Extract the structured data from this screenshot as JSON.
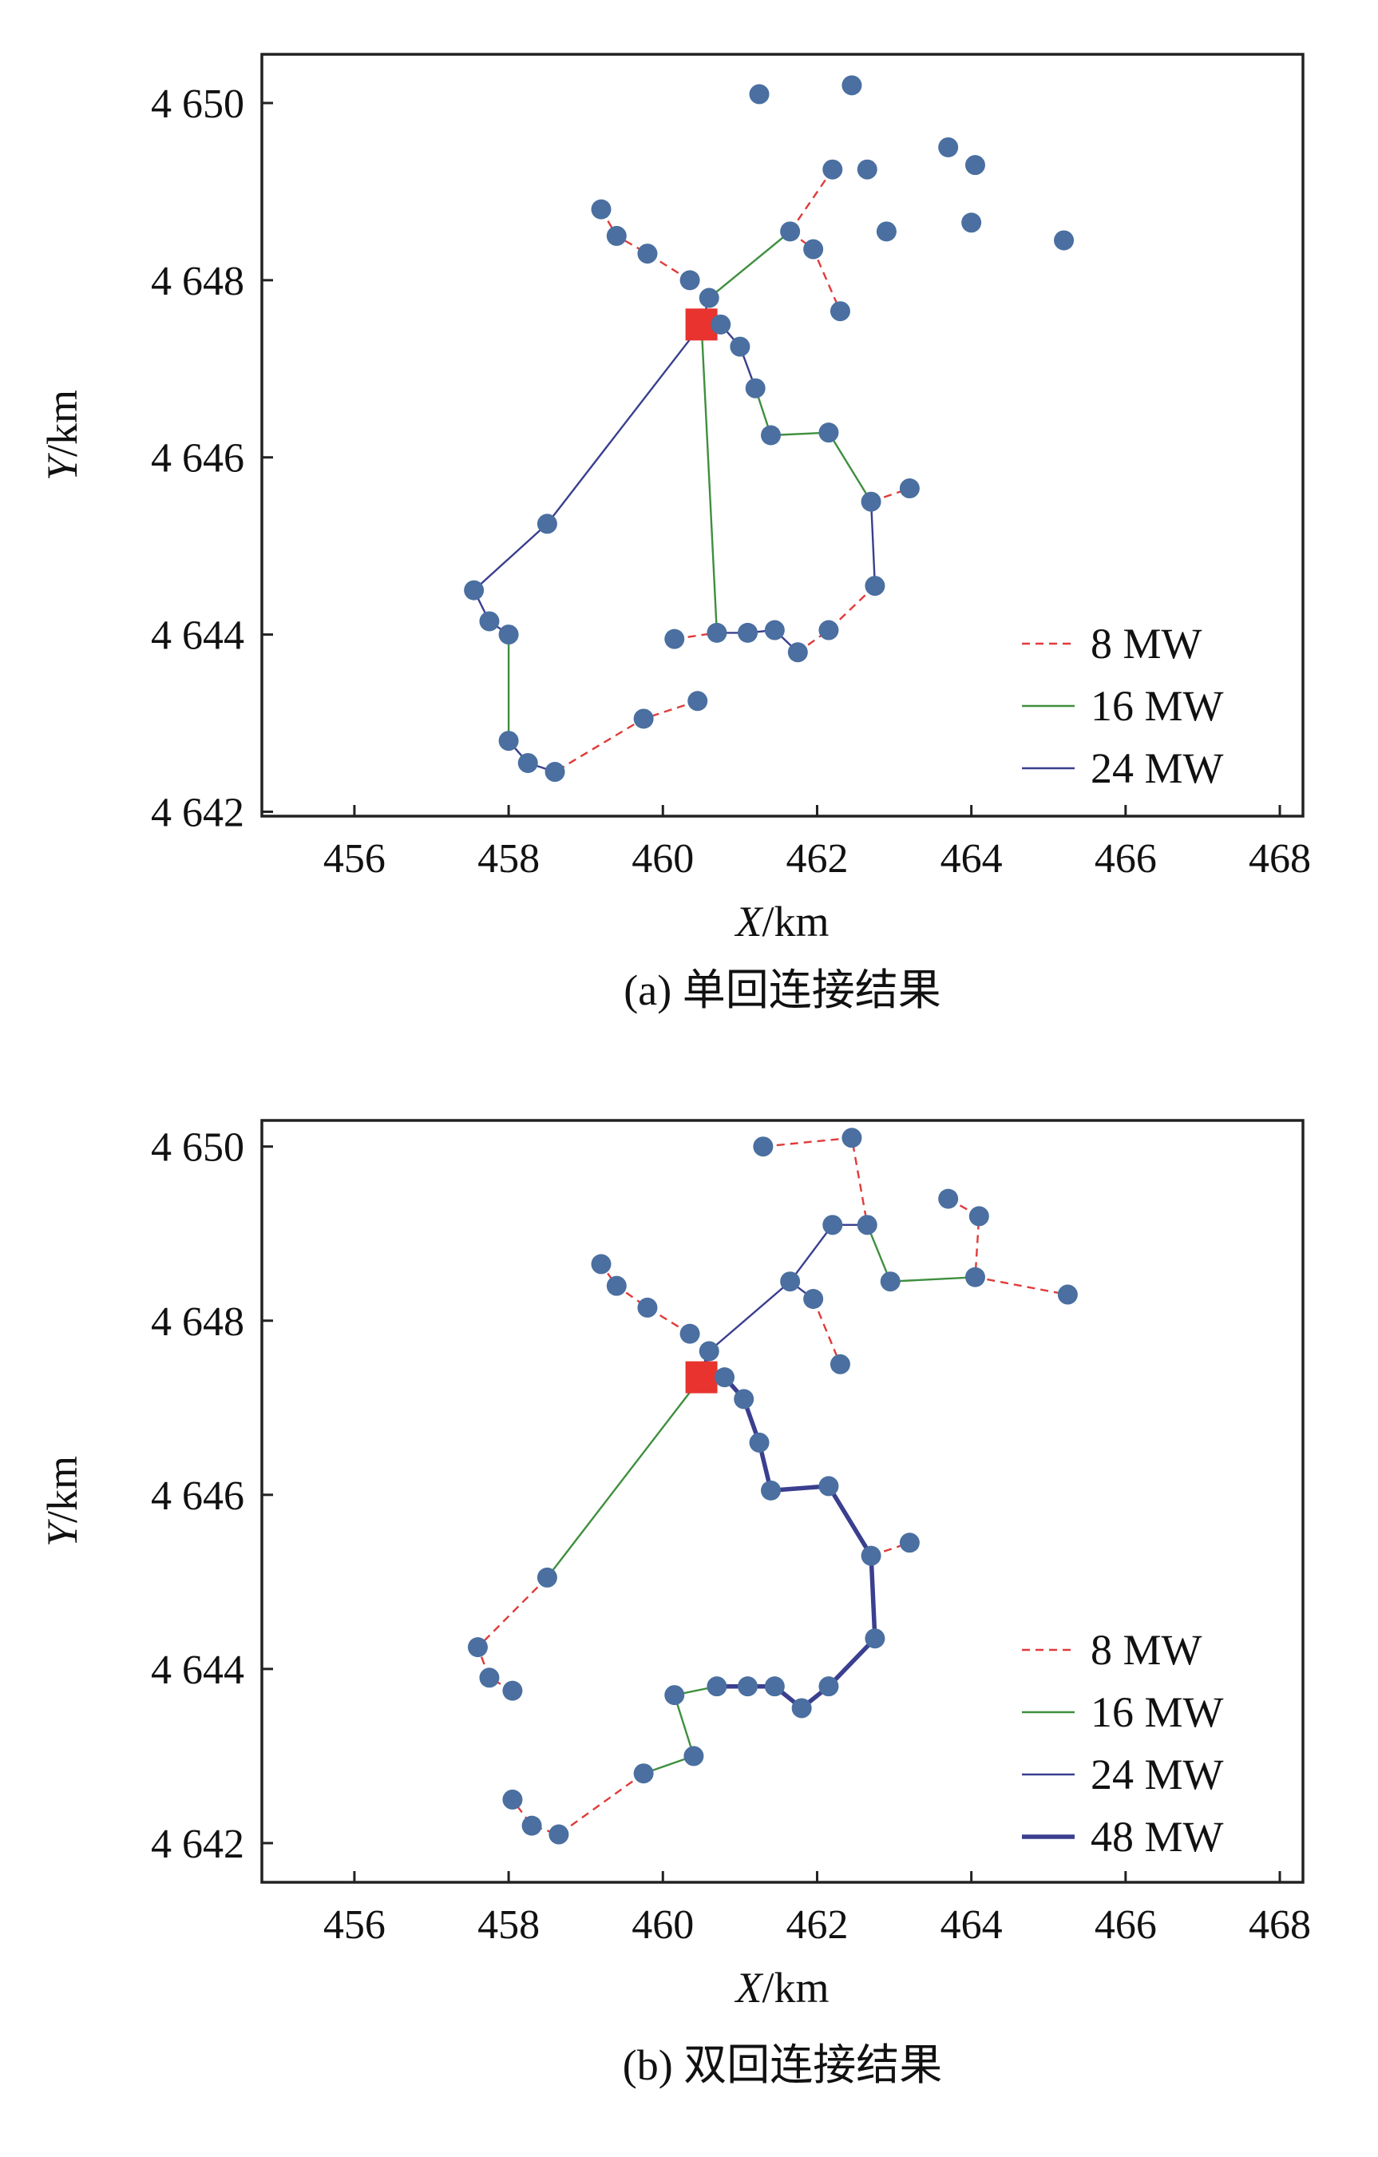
{
  "chart_data": [
    {
      "type": "scatter",
      "caption": "(a) 单回连接结果",
      "xlabel": "X/km",
      "ylabel": "Y/km",
      "xlim": [
        454.8,
        468.3
      ],
      "ylim": [
        4641.95,
        4650.55
      ],
      "xticks": [
        456,
        458,
        460,
        462,
        464,
        466,
        468
      ],
      "xtick_labels": [
        "456",
        "458",
        "460",
        "462",
        "464",
        "466",
        "468"
      ],
      "yticks": [
        4642,
        4644,
        4646,
        4648,
        4650
      ],
      "ytick_labels": [
        "4 642",
        "4 644",
        "4 646",
        "4 648",
        "4 650"
      ],
      "legend_position": "bottom-right",
      "series": [
        {
          "name": "8 MW",
          "style": "dashed",
          "color": "#e03a3a",
          "width": 2.4,
          "lines": [
            [
              [
                461.65,
                4648.55
              ],
              [
                462.2,
                4649.25
              ]
            ],
            [
              [
                461.65,
                4648.55
              ],
              [
                461.95,
                4648.35
              ],
              [
                462.3,
                4647.65
              ]
            ],
            [
              [
                460.35,
                4648.0
              ],
              [
                459.8,
                4648.3
              ],
              [
                459.4,
                4648.5
              ],
              [
                459.2,
                4648.8
              ]
            ],
            [
              [
                462.7,
                4645.5
              ],
              [
                463.2,
                4645.65
              ]
            ],
            [
              [
                462.75,
                4644.55
              ],
              [
                462.15,
                4644.05
              ],
              [
                461.75,
                4643.8
              ]
            ],
            [
              [
                460.15,
                4643.95
              ],
              [
                460.7,
                4644.02
              ]
            ],
            [
              [
                460.45,
                4643.25
              ],
              [
                459.75,
                4643.05
              ],
              [
                458.6,
                4642.45
              ]
            ]
          ]
        },
        {
          "name": "16 MW",
          "style": "solid",
          "color": "#3e8f3e",
          "width": 2.4,
          "lines": [
            [
              [
                460.6,
                4647.8
              ],
              [
                461.65,
                4648.55
              ]
            ],
            [
              [
                461.2,
                4646.78
              ],
              [
                461.4,
                4646.25
              ],
              [
                462.15,
                4646.28
              ],
              [
                462.7,
                4645.5
              ]
            ],
            [
              [
                460.5,
                4647.5
              ],
              [
                460.7,
                4644.02
              ]
            ],
            [
              [
                458.0,
                4644.0
              ],
              [
                458.0,
                4642.8
              ]
            ]
          ]
        },
        {
          "name": "24 MW",
          "style": "solid",
          "color": "#3a3f8f",
          "width": 2.4,
          "lines": [
            [
              [
                460.5,
                4647.5
              ],
              [
                458.5,
                4645.25
              ],
              [
                457.55,
                4644.5
              ],
              [
                457.75,
                4644.15
              ],
              [
                458.0,
                4644.0
              ]
            ],
            [
              [
                460.5,
                4647.5
              ],
              [
                460.75,
                4647.5
              ],
              [
                461.0,
                4647.25
              ],
              [
                461.2,
                4646.78
              ]
            ],
            [
              [
                460.5,
                4647.5
              ],
              [
                460.6,
                4647.8
              ]
            ],
            [
              [
                458.0,
                4642.8
              ],
              [
                458.25,
                4642.55
              ],
              [
                458.6,
                4642.45
              ]
            ],
            [
              [
                462.7,
                4645.5
              ],
              [
                462.75,
                4644.55
              ]
            ],
            [
              [
                460.7,
                4644.02
              ],
              [
                461.1,
                4644.02
              ],
              [
                461.45,
                4644.05
              ],
              [
                461.75,
                4643.8
              ]
            ]
          ]
        }
      ],
      "nodes": [
        [
          461.25,
          4650.1
        ],
        [
          462.45,
          4650.2
        ],
        [
          463.7,
          4649.5
        ],
        [
          464.05,
          4649.3
        ],
        [
          462.2,
          4649.25
        ],
        [
          462.65,
          4649.25
        ],
        [
          459.2,
          4648.8
        ],
        [
          461.65,
          4648.55
        ],
        [
          462.9,
          4648.55
        ],
        [
          464.0,
          4648.65
        ],
        [
          465.2,
          4648.45
        ],
        [
          459.4,
          4648.5
        ],
        [
          459.8,
          4648.3
        ],
        [
          461.95,
          4648.35
        ],
        [
          460.35,
          4648.0
        ],
        [
          460.6,
          4647.8
        ],
        [
          462.3,
          4647.65
        ],
        [
          460.75,
          4647.5
        ],
        [
          461.0,
          4647.25
        ],
        [
          461.2,
          4646.78
        ],
        [
          461.4,
          4646.25
        ],
        [
          462.15,
          4646.28
        ],
        [
          462.7,
          4645.5
        ],
        [
          463.2,
          4645.65
        ],
        [
          458.5,
          4645.25
        ],
        [
          462.75,
          4644.55
        ],
        [
          457.55,
          4644.5
        ],
        [
          457.75,
          4644.15
        ],
        [
          458.0,
          4644.0
        ],
        [
          460.15,
          4643.95
        ],
        [
          460.7,
          4644.02
        ],
        [
          461.1,
          4644.02
        ],
        [
          461.45,
          4644.05
        ],
        [
          461.75,
          4643.8
        ],
        [
          462.15,
          4644.05
        ],
        [
          460.45,
          4643.25
        ],
        [
          459.75,
          4643.05
        ],
        [
          458.0,
          4642.8
        ],
        [
          458.25,
          4642.55
        ],
        [
          458.6,
          4642.45
        ]
      ],
      "substation": [
        460.5,
        4647.5
      ]
    },
    {
      "type": "scatter",
      "caption": "(b)  双回连接结果",
      "xlabel": "X/km",
      "ylabel": "Y/km",
      "xlim": [
        454.8,
        468.3
      ],
      "ylim": [
        4641.55,
        4650.3
      ],
      "xticks": [
        456,
        458,
        460,
        462,
        464,
        466,
        468
      ],
      "xtick_labels": [
        "456",
        "458",
        "460",
        "462",
        "464",
        "466",
        "468"
      ],
      "yticks": [
        4642,
        4644,
        4646,
        4648,
        4650
      ],
      "ytick_labels": [
        "4 642",
        "4 644",
        "4 646",
        "4 648",
        "4 650"
      ],
      "legend_position": "bottom-right",
      "series": [
        {
          "name": "8 MW",
          "style": "dashed",
          "color": "#e03a3a",
          "width": 2.4,
          "lines": [
            [
              [
                461.3,
                4650.0
              ],
              [
                462.45,
                4650.1
              ],
              [
                462.65,
                4649.1
              ]
            ],
            [
              [
                463.7,
                4649.4
              ],
              [
                464.1,
                4649.2
              ],
              [
                464.05,
                4648.5
              ],
              [
                465.25,
                4648.3
              ]
            ],
            [
              [
                460.35,
                4647.85
              ],
              [
                459.8,
                4648.15
              ],
              [
                459.4,
                4648.4
              ],
              [
                459.2,
                4648.65
              ]
            ],
            [
              [
                461.95,
                4648.25
              ],
              [
                462.3,
                4647.5
              ]
            ],
            [
              [
                462.7,
                4645.3
              ],
              [
                463.2,
                4645.45
              ]
            ],
            [
              [
                458.5,
                4645.05
              ],
              [
                457.6,
                4644.25
              ],
              [
                457.75,
                4643.9
              ],
              [
                458.05,
                4643.75
              ]
            ],
            [
              [
                459.75,
                4642.8
              ],
              [
                458.65,
                4642.1
              ],
              [
                458.3,
                4642.2
              ],
              [
                458.05,
                4642.5
              ]
            ]
          ]
        },
        {
          "name": "16 MW",
          "style": "solid",
          "color": "#3e8f3e",
          "width": 2.4,
          "lines": [
            [
              [
                462.65,
                4649.1
              ],
              [
                462.95,
                4648.45
              ],
              [
                464.05,
                4648.5
              ]
            ],
            [
              [
                460.5,
                4647.35
              ],
              [
                458.5,
                4645.05
              ]
            ],
            [
              [
                460.7,
                4643.8
              ],
              [
                460.15,
                4643.7
              ],
              [
                460.4,
                4643.0
              ],
              [
                459.75,
                4642.8
              ]
            ]
          ]
        },
        {
          "name": "24 MW",
          "style": "solid",
          "color": "#3a3f8f",
          "width": 2.4,
          "lines": [
            [
              [
                460.6,
                4647.65
              ],
              [
                461.65,
                4648.45
              ],
              [
                462.2,
                4649.1
              ],
              [
                462.65,
                4649.1
              ]
            ],
            [
              [
                461.65,
                4648.45
              ],
              [
                461.95,
                4648.25
              ]
            ]
          ]
        },
        {
          "name": "48 MW",
          "style": "solid",
          "color": "#3a3f8f",
          "width": 5.5,
          "lines": [
            [
              [
                460.5,
                4647.35
              ],
              [
                460.6,
                4647.65
              ]
            ],
            [
              [
                460.5,
                4647.35
              ],
              [
                460.8,
                4647.35
              ],
              [
                461.05,
                4647.1
              ],
              [
                461.25,
                4646.6
              ],
              [
                461.4,
                4646.05
              ],
              [
                462.15,
                4646.1
              ],
              [
                462.7,
                4645.3
              ],
              [
                462.75,
                4644.35
              ],
              [
                462.15,
                4643.8
              ],
              [
                461.8,
                4643.55
              ],
              [
                461.45,
                4643.8
              ],
              [
                461.1,
                4643.8
              ],
              [
                460.7,
                4643.8
              ]
            ]
          ]
        }
      ],
      "nodes": [
        [
          461.3,
          4650.0
        ],
        [
          462.45,
          4650.1
        ],
        [
          463.7,
          4649.4
        ],
        [
          464.1,
          4649.2
        ],
        [
          462.2,
          4649.1
        ],
        [
          462.65,
          4649.1
        ],
        [
          459.2,
          4648.65
        ],
        [
          461.65,
          4648.45
        ],
        [
          462.95,
          4648.45
        ],
        [
          464.05,
          4648.5
        ],
        [
          465.25,
          4648.3
        ],
        [
          459.4,
          4648.4
        ],
        [
          459.8,
          4648.15
        ],
        [
          461.95,
          4648.25
        ],
        [
          460.35,
          4647.85
        ],
        [
          460.6,
          4647.65
        ],
        [
          462.3,
          4647.5
        ],
        [
          460.8,
          4647.35
        ],
        [
          461.05,
          4647.1
        ],
        [
          461.25,
          4646.6
        ],
        [
          461.4,
          4646.05
        ],
        [
          462.15,
          4646.1
        ],
        [
          462.7,
          4645.3
        ],
        [
          463.2,
          4645.45
        ],
        [
          458.5,
          4645.05
        ],
        [
          462.75,
          4644.35
        ],
        [
          457.6,
          4644.25
        ],
        [
          457.75,
          4643.9
        ],
        [
          458.05,
          4643.75
        ],
        [
          460.15,
          4643.7
        ],
        [
          460.7,
          4643.8
        ],
        [
          461.1,
          4643.8
        ],
        [
          461.45,
          4643.8
        ],
        [
          461.8,
          4643.55
        ],
        [
          462.15,
          4643.8
        ],
        [
          460.4,
          4643.0
        ],
        [
          459.75,
          4642.8
        ],
        [
          458.05,
          4642.5
        ],
        [
          458.3,
          4642.2
        ],
        [
          458.65,
          4642.1
        ]
      ],
      "substation": [
        460.5,
        4647.35
      ]
    }
  ],
  "colors": {
    "node": "#4a6fa0",
    "substation": "#e8332e",
    "axis": "#222222"
  }
}
